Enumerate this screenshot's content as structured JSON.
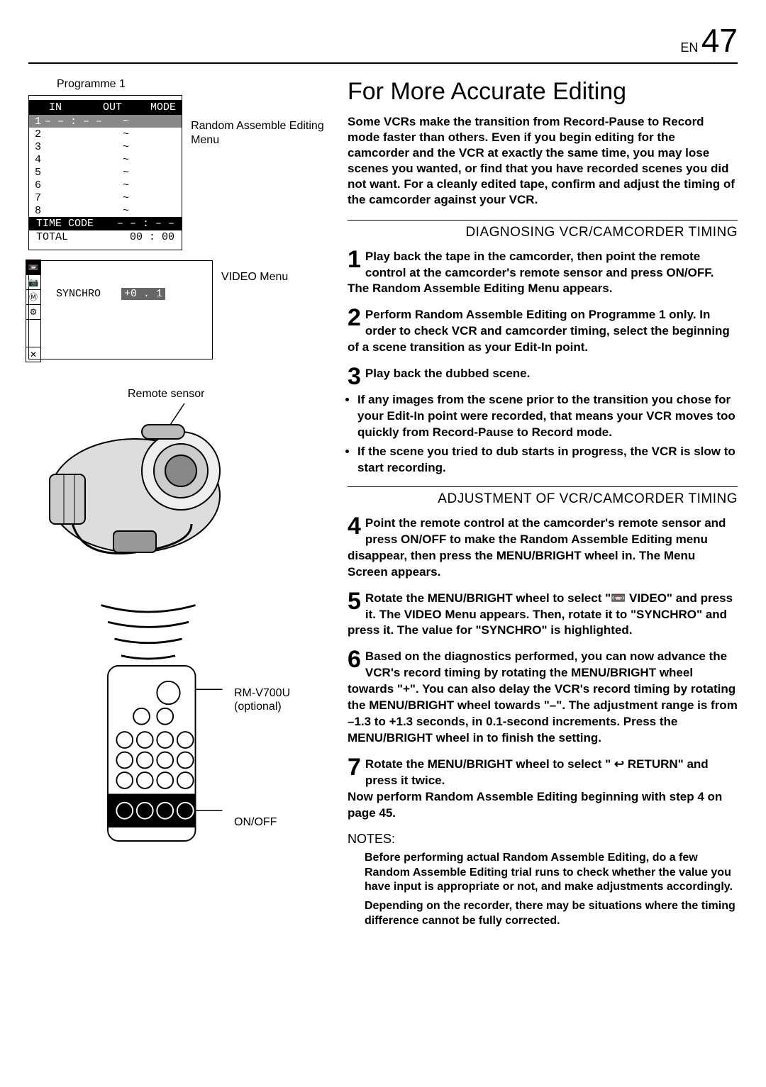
{
  "header": {
    "lang": "EN",
    "page": "47"
  },
  "leftCol": {
    "programmeLabel": "Programme 1",
    "menuHeader": {
      "in": "IN",
      "out": "OUT",
      "mode": "MODE"
    },
    "menuRows": [
      {
        "n": "1",
        "in": "– – : – –",
        "out": "~",
        "mode": ""
      },
      {
        "n": "2",
        "in": "",
        "out": "~",
        "mode": ""
      },
      {
        "n": "3",
        "in": "",
        "out": "~",
        "mode": ""
      },
      {
        "n": "4",
        "in": "",
        "out": "~",
        "mode": ""
      },
      {
        "n": "5",
        "in": "",
        "out": "~",
        "mode": ""
      },
      {
        "n": "6",
        "in": "",
        "out": "~",
        "mode": ""
      },
      {
        "n": "7",
        "in": "",
        "out": "~",
        "mode": ""
      },
      {
        "n": "8",
        "in": "",
        "out": "~",
        "mode": ""
      }
    ],
    "timeCodeRow": {
      "label": "TIME CODE",
      "value": "– – : – –"
    },
    "totalRow": {
      "label": "TOTAL",
      "value": "00 : 00"
    },
    "randomAssembleLabel": "Random Assemble Editing Menu",
    "videoMenuLabel": "VIDEO Menu",
    "synchroLabel": "SYNCHRO",
    "synchroValue": "+0 . 1",
    "remoteSensorLabel": "Remote sensor",
    "remoteModel": "RM-V700U",
    "remoteOptional": "(optional)",
    "onOffLabel": "ON/OFF"
  },
  "rightCol": {
    "title": "For More Accurate Editing",
    "intro": "Some VCRs make the transition from Record-Pause to Record mode faster than others. Even if you begin editing for the camcorder and the VCR at exactly the same time, you may lose scenes you wanted, or find that you have recorded scenes you did not want. For a cleanly edited tape, confirm and adjust the timing of the camcorder against your VCR.",
    "h2a": "DIAGNOSING VCR/CAMCORDER TIMING",
    "step1": "Play back the tape in the camcorder, then point the remote control at the camcorder's remote sensor and press ON/OFF.",
    "step1b": "The Random Assemble Editing Menu appears.",
    "step2": "Perform Random Assemble Editing on Programme 1 only. In order to check VCR and camcorder timing, select the beginning of a scene transition as your Edit-In point.",
    "step3": "Play back the dubbed scene.",
    "bulletA": "If any images from the scene prior to the transition you chose for your Edit-In point were recorded, that means your VCR moves too quickly from Record-Pause to Record mode.",
    "bulletB": "If the scene you tried to dub starts in progress, the VCR is slow to start recording.",
    "h2b": "ADJUSTMENT OF VCR/CAMCORDER TIMING",
    "step4": "Point the remote control at the camcorder's remote sensor and press ON/OFF to make the Random Assemble Editing menu disappear, then press the MENU/BRIGHT wheel in. The Menu Screen appears.",
    "step5": "Rotate the MENU/BRIGHT wheel to select \"📼 VIDEO\" and press it. The VIDEO Menu appears. Then, rotate it to \"SYNCHRO\" and press it. The value for \"SYNCHRO\" is highlighted.",
    "step6": "Based on the diagnostics performed, you can now advance the VCR's record timing by rotating the MENU/BRIGHT wheel towards \"+\". You can also delay the VCR's record timing by rotating the MENU/BRIGHT wheel towards \"–\". The adjustment range is from –1.3 to +1.3 seconds, in 0.1-second increments. Press the MENU/BRIGHT wheel in to finish the setting.",
    "step7": "Rotate the MENU/BRIGHT wheel to select \" ↩ RETURN\" and press it twice.",
    "step7b": "Now perform Random Assemble Editing beginning with step 4 on page 45.",
    "notesHdr": "NOTES:",
    "note1": "Before performing actual Random Assemble Editing, do a few Random Assemble Editing trial runs to check whether the value you have input is appropriate or not, and make adjustments accordingly.",
    "note2": "Depending on the recorder, there may be situations where the timing difference cannot be fully corrected."
  }
}
